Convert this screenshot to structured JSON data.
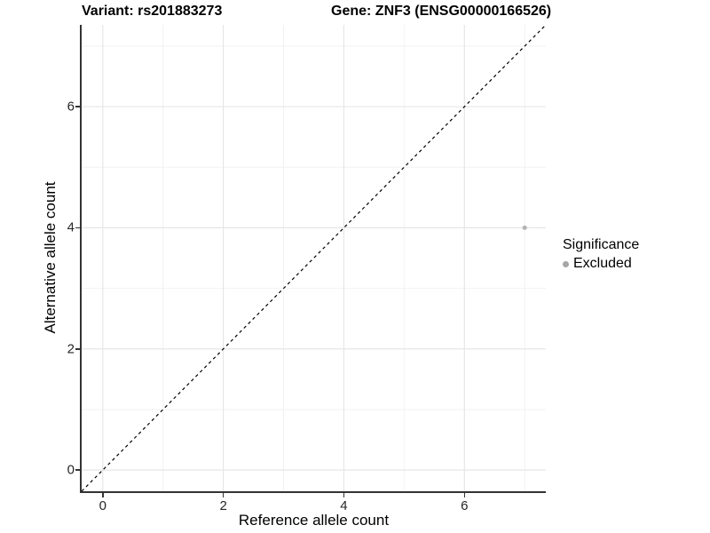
{
  "chart_data": {
    "type": "scatter",
    "title_left": "Variant: rs201883273",
    "title_right": "Gene: ZNF3 (ENSG00000166526)",
    "xlabel": "Reference allele count",
    "ylabel": "Alternative allele count",
    "xlim": [
      -0.35,
      7.35
    ],
    "ylim": [
      -0.35,
      7.35
    ],
    "xticks": [
      0,
      2,
      4,
      6
    ],
    "yticks": [
      0,
      2,
      4,
      6
    ],
    "x_minor": [
      1,
      3,
      5,
      7
    ],
    "y_minor": [
      1,
      3,
      5,
      7
    ],
    "grid": "on",
    "series": [
      {
        "name": "Excluded",
        "color": "#b3b3b3",
        "point_radius": 2.5,
        "points": [
          {
            "x": 7,
            "y": 4
          }
        ]
      }
    ],
    "reference_line": {
      "type": "identity-diagonal",
      "style": "dashed",
      "color": "#000000",
      "from": [
        -0.35,
        -0.35
      ],
      "to": [
        7.35,
        7.35
      ]
    },
    "legend": {
      "title": "Significance",
      "position": "right",
      "entries": [
        {
          "label": "Excluded",
          "color": "#a6a6a6"
        }
      ]
    },
    "colors": {
      "background": "#ffffff",
      "grid_major": "#e6e6e6",
      "grid_minor": "#f2f2f2",
      "axis_line": "#333333",
      "tick_label": "#262626"
    }
  }
}
